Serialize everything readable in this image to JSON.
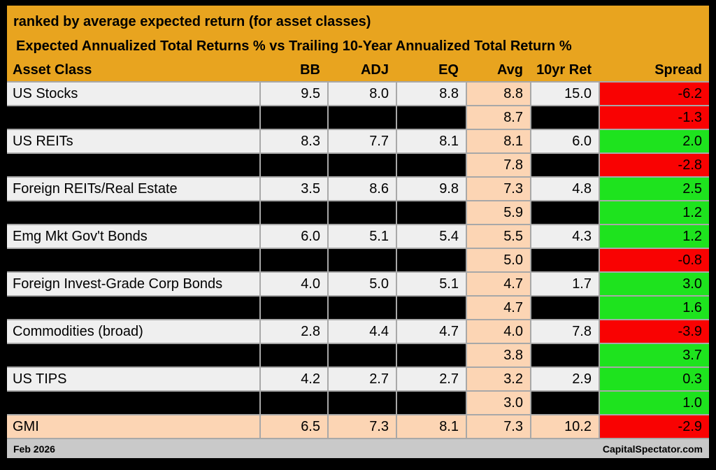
{
  "title_line1": "ranked by average expected return (for asset classes)",
  "title_line2": "Expected Annualized Total Returns % vs Trailing 10-Year Annualized Total Return %",
  "columns": [
    "Asset Class",
    "BB",
    "ADJ",
    "EQ",
    "Avg",
    "10yr Ret",
    "Spread"
  ],
  "colors": {
    "gold": "#E8A41F",
    "row_bg": "#EFEFEF",
    "redacted_bg": "#000000",
    "avg_column_bg": "#FCD5B4",
    "summary_row_bg": "#FCD5B4",
    "positive": "#1EE31E",
    "negative": "#F90202",
    "gridline": "#A8A8A8",
    "footer_bg": "#C9C9C9",
    "outer_border": "#000000",
    "text": "#000000"
  },
  "rows": [
    {
      "type": "data",
      "asset_class": "US Stocks",
      "bb": "9.5",
      "adj": "8.0",
      "eq": "8.8",
      "avg": "8.8",
      "ten_yr_ret": "15.0",
      "spread": "-6.2",
      "spread_sign": "negative"
    },
    {
      "type": "redacted",
      "asset_class": "",
      "bb": "",
      "adj": "",
      "eq": "",
      "avg": "8.7",
      "ten_yr_ret": "",
      "spread": "-1.3",
      "spread_sign": "negative"
    },
    {
      "type": "data",
      "asset_class": "US REITs",
      "bb": "8.3",
      "adj": "7.7",
      "eq": "8.1",
      "avg": "8.1",
      "ten_yr_ret": "6.0",
      "spread": "2.0",
      "spread_sign": "positive"
    },
    {
      "type": "redacted",
      "asset_class": "",
      "bb": "",
      "adj": "",
      "eq": "",
      "avg": "7.8",
      "ten_yr_ret": "",
      "spread": "-2.8",
      "spread_sign": "negative"
    },
    {
      "type": "data",
      "asset_class": "Foreign REITs/Real Estate",
      "bb": "3.5",
      "adj": "8.6",
      "eq": "9.8",
      "avg": "7.3",
      "ten_yr_ret": "4.8",
      "spread": "2.5",
      "spread_sign": "positive"
    },
    {
      "type": "redacted",
      "asset_class": "",
      "bb": "",
      "adj": "",
      "eq": "",
      "avg": "5.9",
      "ten_yr_ret": "",
      "spread": "1.2",
      "spread_sign": "positive"
    },
    {
      "type": "data",
      "asset_class": "Emg Mkt Gov't Bonds",
      "bb": "6.0",
      "adj": "5.1",
      "eq": "5.4",
      "avg": "5.5",
      "ten_yr_ret": "4.3",
      "spread": "1.2",
      "spread_sign": "positive"
    },
    {
      "type": "redacted",
      "asset_class": "",
      "bb": "",
      "adj": "",
      "eq": "",
      "avg": "5.0",
      "ten_yr_ret": "",
      "spread": "-0.8",
      "spread_sign": "negative"
    },
    {
      "type": "data",
      "asset_class": "Foreign Invest-Grade Corp Bonds",
      "bb": "4.0",
      "adj": "5.0",
      "eq": "5.1",
      "avg": "4.7",
      "ten_yr_ret": "1.7",
      "spread": "3.0",
      "spread_sign": "positive"
    },
    {
      "type": "redacted",
      "asset_class": "",
      "bb": "",
      "adj": "",
      "eq": "",
      "avg": "4.7",
      "ten_yr_ret": "",
      "spread": "1.6",
      "spread_sign": "positive"
    },
    {
      "type": "data",
      "asset_class": "Commodities (broad)",
      "bb": "2.8",
      "adj": "4.4",
      "eq": "4.7",
      "avg": "4.0",
      "ten_yr_ret": "7.8",
      "spread": "-3.9",
      "spread_sign": "negative"
    },
    {
      "type": "redacted",
      "asset_class": "",
      "bb": "",
      "adj": "",
      "eq": "",
      "avg": "3.8",
      "ten_yr_ret": "",
      "spread": "3.7",
      "spread_sign": "positive"
    },
    {
      "type": "data",
      "asset_class": "US TIPS",
      "bb": "4.2",
      "adj": "2.7",
      "eq": "2.7",
      "avg": "3.2",
      "ten_yr_ret": "2.9",
      "spread": "0.3",
      "spread_sign": "positive"
    },
    {
      "type": "redacted",
      "asset_class": "",
      "bb": "",
      "adj": "",
      "eq": "",
      "avg": "3.0",
      "ten_yr_ret": "",
      "spread": "1.0",
      "spread_sign": "positive"
    },
    {
      "type": "summary",
      "asset_class": "GMI",
      "bb": "6.5",
      "adj": "7.3",
      "eq": "8.1",
      "avg": "7.3",
      "ten_yr_ret": "10.2",
      "spread": "-2.9",
      "spread_sign": "negative"
    }
  ],
  "footer": {
    "date": "Feb 2026",
    "source": "CapitalSpectator.com"
  },
  "chart_data": {
    "type": "table",
    "title": "Expected Annualized Total Returns % vs Trailing 10-Year Annualized Total Return %",
    "subtitle": "ranked by average expected return (for asset classes)",
    "columns": [
      "Asset Class",
      "BB",
      "ADJ",
      "EQ",
      "Avg",
      "10yr Ret",
      "Spread"
    ],
    "rows": [
      [
        "US Stocks",
        9.5,
        8.0,
        8.8,
        8.8,
        15.0,
        -6.2
      ],
      [
        null,
        null,
        null,
        null,
        8.7,
        null,
        -1.3
      ],
      [
        "US REITs",
        8.3,
        7.7,
        8.1,
        8.1,
        6.0,
        2.0
      ],
      [
        null,
        null,
        null,
        null,
        7.8,
        null,
        -2.8
      ],
      [
        "Foreign REITs/Real Estate",
        3.5,
        8.6,
        9.8,
        7.3,
        4.8,
        2.5
      ],
      [
        null,
        null,
        null,
        null,
        5.9,
        null,
        1.2
      ],
      [
        "Emg Mkt Gov't Bonds",
        6.0,
        5.1,
        5.4,
        5.5,
        4.3,
        1.2
      ],
      [
        null,
        null,
        null,
        null,
        5.0,
        null,
        -0.8
      ],
      [
        "Foreign Invest-Grade Corp Bonds",
        4.0,
        5.0,
        5.1,
        4.7,
        1.7,
        3.0
      ],
      [
        null,
        null,
        null,
        null,
        4.7,
        null,
        1.6
      ],
      [
        "Commodities (broad)",
        2.8,
        4.4,
        4.7,
        4.0,
        7.8,
        -3.9
      ],
      [
        null,
        null,
        null,
        null,
        3.8,
        null,
        3.7
      ],
      [
        "US TIPS",
        4.2,
        2.7,
        2.7,
        3.2,
        2.9,
        0.3
      ],
      [
        null,
        null,
        null,
        null,
        3.0,
        null,
        1.0
      ],
      [
        "GMI",
        6.5,
        7.3,
        8.1,
        7.3,
        10.2,
        -2.9
      ]
    ],
    "notes": "null cells are blacked out (redacted) in the image; Spread cells render green when positive and red when negative; Avg column and GMI summary row have a peach background."
  }
}
